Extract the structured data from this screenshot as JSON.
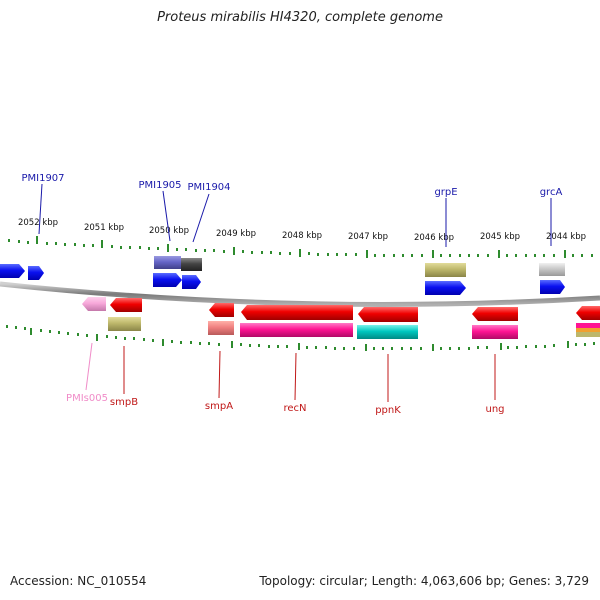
{
  "title": "Proteus mirabilis HI4320, complete genome",
  "accession": "Accession: NC_010554",
  "summary": "Topology: circular; Length: 4,063,606 bp; Genes: 3,729",
  "colors": {
    "backbone": "#8a8a8a",
    "tick": "#2e8b2e",
    "top_label": "#1a1aaa",
    "bottom_label": "#c01818",
    "pseudogene_label": "#f08cc8"
  },
  "scale_labels": [
    "2052 kbp",
    "2051 kbp",
    "2050 kbp",
    "2049 kbp",
    "2048 kbp",
    "2047 kbp",
    "2046 kbp",
    "2045 kbp",
    "2044 kbp"
  ],
  "gene_labels": {
    "top": [
      "PMI1907",
      "PMI1905",
      "PMI1904",
      "grpE",
      "grcA"
    ],
    "bottom": [
      "PMIs005",
      "smpB",
      "smpA",
      "recN",
      "ppnK",
      "ung"
    ]
  }
}
